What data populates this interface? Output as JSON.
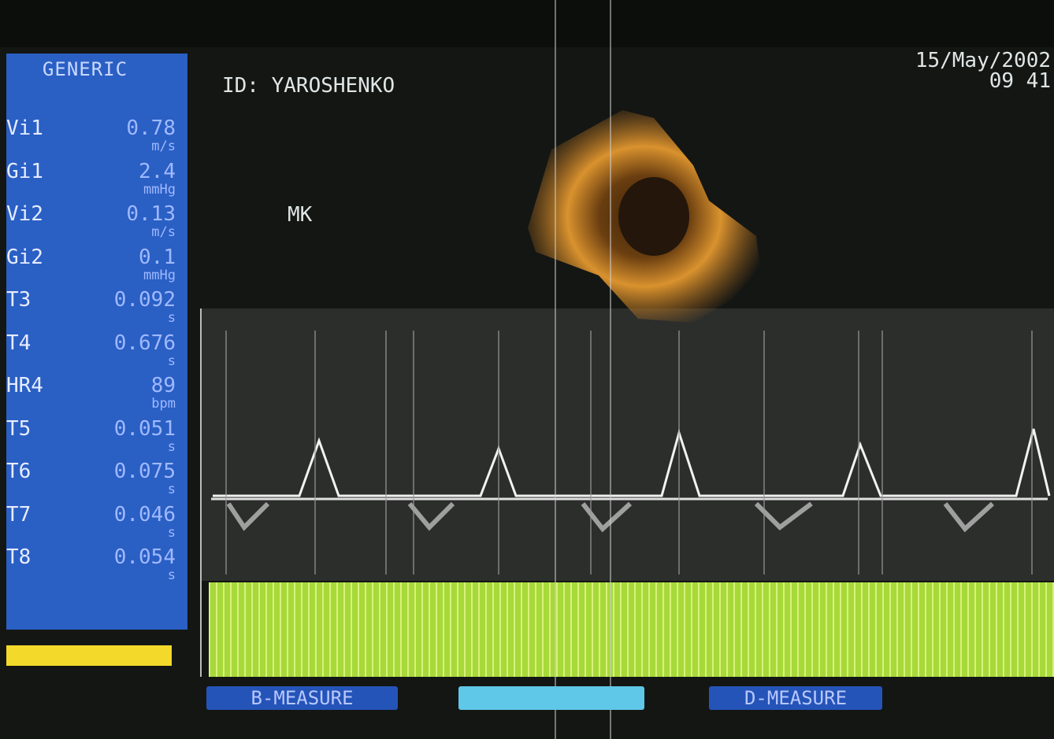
{
  "panel": {
    "title": "GENERIC",
    "rows": [
      [
        "Vi1",
        "0.78",
        "m/s"
      ],
      [
        "Gi1",
        "2.4",
        "mmHg"
      ],
      [
        "Vi2",
        "0.13",
        "m/s"
      ],
      [
        "Gi2",
        "0.1",
        "mmHg"
      ],
      [
        "T3",
        "0.092",
        "s"
      ],
      [
        "T4",
        "0.676",
        "s"
      ],
      [
        "HR4",
        "89",
        "bpm"
      ],
      [
        "T5",
        "0.051",
        "s"
      ],
      [
        "T6",
        "0.075",
        "s"
      ],
      [
        "T7",
        "0.046",
        "s"
      ],
      [
        "T8",
        "0.054",
        "s"
      ]
    ]
  },
  "header": {
    "patient_id": "ID: YAROSHENKO",
    "date": "15/May/2002",
    "time": "09 41"
  },
  "image": {
    "label": "MK"
  },
  "buttons": [
    "B-MEASURE",
    "D-MEASURE"
  ]
}
